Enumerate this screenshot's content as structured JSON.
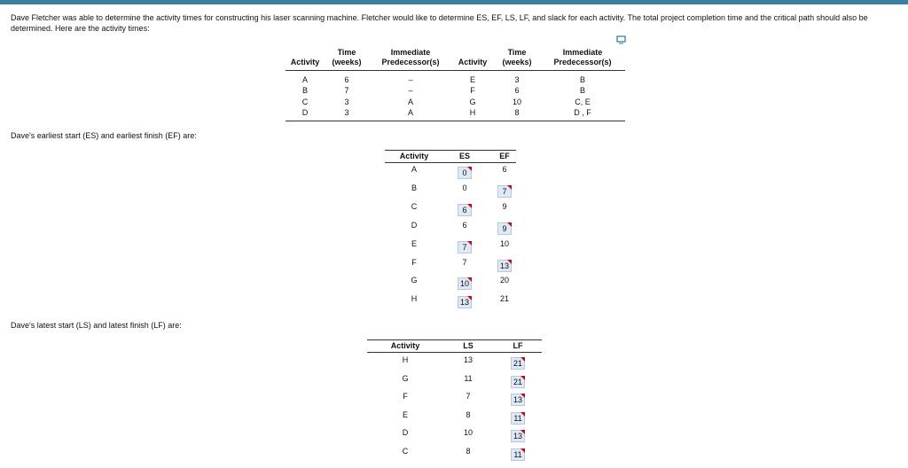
{
  "intro": "Dave Fletcher was able to determine the activity times for constructing his laser scanning machine. Fletcher would like to determine ES, EF, LS, LF, and slack for each activity. The total project completion time and the critical path should also be determined. Here are the activity times:",
  "activity_table": {
    "headers": [
      [
        "Activity"
      ],
      [
        "Time",
        "(weeks)"
      ],
      [
        "Immediate",
        "Predecessor(s)"
      ],
      [
        "Activity"
      ],
      [
        "Time",
        "(weeks)"
      ],
      [
        "Immediate",
        "Predecessor(s)"
      ]
    ],
    "rows": [
      [
        "A",
        6,
        "–",
        "E",
        3,
        "B"
      ],
      [
        "B",
        7,
        "–",
        "F",
        6,
        "B"
      ],
      [
        "C",
        3,
        "A",
        "G",
        10,
        "C, E"
      ],
      [
        "D",
        3,
        "A",
        "H",
        8,
        "D , F"
      ]
    ]
  },
  "es_ef_label": "Dave's earliest start (ES) and earliest finish (EF) are:",
  "es_ef": {
    "headers": [
      "Activity",
      "ES",
      "EF"
    ],
    "rows": [
      [
        "A",
        0,
        6
      ],
      [
        "B",
        0,
        7
      ],
      [
        "C",
        6,
        9
      ],
      [
        "D",
        6,
        9
      ],
      [
        "E",
        7,
        10
      ],
      [
        "F",
        7,
        13
      ],
      [
        "G",
        10,
        20
      ],
      [
        "H",
        13,
        21
      ]
    ]
  },
  "ls_lf_label": "Dave's latest start (LS) and latest finish (LF) are:",
  "ls_lf": {
    "headers": [
      "Activity",
      "LS",
      "LF"
    ],
    "rows": [
      [
        "H",
        13,
        21
      ],
      [
        "G",
        11,
        21
      ],
      [
        "F",
        7,
        13
      ],
      [
        "E",
        8,
        11
      ],
      [
        "D",
        10,
        13
      ],
      [
        "C",
        8,
        11
      ]
    ]
  }
}
